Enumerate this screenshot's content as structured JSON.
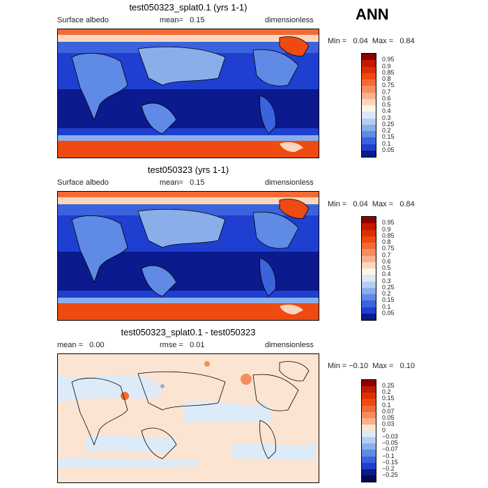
{
  "header": {
    "season": "ANN"
  },
  "panels": [
    {
      "title": "test050323_splat0.1 (yrs 1-1)",
      "field": "Surface albedo",
      "stat": "mean=   0.15",
      "units": "dimensionless",
      "minmax": "Min =   0.04  Max =   0.84",
      "colorbar": {
        "labels": [
          "0.95",
          "0.9",
          "0.85",
          "0.8",
          "0.75",
          "0.7",
          "0.6",
          "0.5",
          "0.4",
          "0.3",
          "0.25",
          "0.2",
          "0.15",
          "0.1",
          "0.05"
        ],
        "colors": [
          "#8b0000",
          "#c01a00",
          "#dd3000",
          "#ee4a12",
          "#f46a35",
          "#f78c5e",
          "#f9b08c",
          "#fbd6bd",
          "#fff5e6",
          "#dce8f8",
          "#b5cdf2",
          "#8aaee9",
          "#5f8ae6",
          "#3a63dd",
          "#1e3fd0",
          "#0b1a8c"
        ]
      }
    },
    {
      "title": "test050323 (yrs 1-1)",
      "field": "Surface albedo",
      "stat": "mean=   0.15",
      "units": "dimensionless",
      "minmax": "Min =   0.04  Max =   0.84",
      "colorbar": {
        "labels": [
          "0.95",
          "0.9",
          "0.85",
          "0.8",
          "0.75",
          "0.7",
          "0.6",
          "0.5",
          "0.4",
          "0.3",
          "0.25",
          "0.2",
          "0.15",
          "0.1",
          "0.05"
        ],
        "colors": [
          "#8b0000",
          "#c01a00",
          "#dd3000",
          "#ee4a12",
          "#f46a35",
          "#f78c5e",
          "#f9b08c",
          "#fbd6bd",
          "#fff5e6",
          "#dce8f8",
          "#b5cdf2",
          "#8aaee9",
          "#5f8ae6",
          "#3a63dd",
          "#1e3fd0",
          "#0b1a8c"
        ]
      }
    },
    {
      "title": "test050323_splat0.1 - test050323",
      "field": "mean =   0.00",
      "stat": "rmse =   0.01",
      "units": "dimensionless",
      "minmax": "Min = −0.10  Max =   0.10",
      "colorbar": {
        "labels": [
          "0.25",
          "0.2",
          "0.15",
          "0.1",
          "0.07",
          "0.05",
          "0.03",
          "0",
          "−0.03",
          "−0.05",
          "−0.07",
          "−0.1",
          "−0.15",
          "−0.2",
          "−0.25"
        ],
        "colors": [
          "#8b0000",
          "#c01a00",
          "#dd3000",
          "#ee4a12",
          "#f46a35",
          "#f78c5e",
          "#f9b08c",
          "#fbe4d2",
          "#ddebf9",
          "#b5cdf2",
          "#8aaee9",
          "#5f8ae6",
          "#3a63dd",
          "#1e3fd0",
          "#0b1a8c",
          "#050a55"
        ]
      }
    }
  ]
}
